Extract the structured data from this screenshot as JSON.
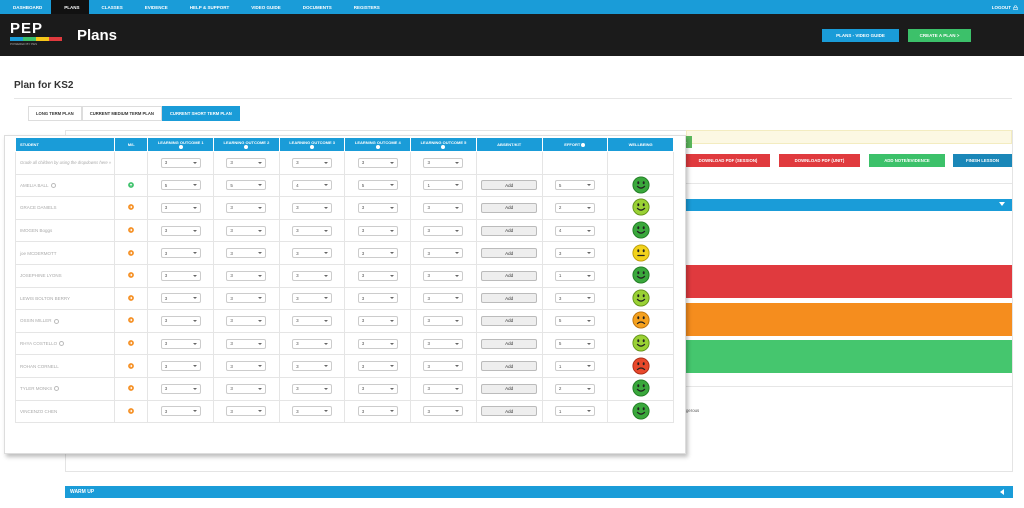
{
  "nav": {
    "items": [
      "DASHBOARD",
      "PLANS",
      "CLASSES",
      "EVIDENCE",
      "HELP & SUPPORT",
      "VIDEO GUIDE",
      "DOCUMENTS",
      "REGISTERS"
    ],
    "logout": "LOGOUT"
  },
  "header": {
    "logo_text": "PEP",
    "logo_tag": "POWERED BY PES",
    "title": "Plans",
    "video_guide": "PLANS - VIDEO GUIDE",
    "create_plan": "CREATE A PLAN >"
  },
  "plan_title": "Plan for KS2",
  "tabs": [
    {
      "label": "LONG TERM PLAN",
      "active": false
    },
    {
      "label": "CURRENT MEDIUM TERM PLAN",
      "active": false
    },
    {
      "label": "CURRENT SHORT TERM PLAN",
      "active": true
    }
  ],
  "actions": {
    "plus": "+",
    "pdf_session": "DOWNLOAD PDF (SESSION)",
    "pdf_unit": "DOWNLOAD PDF (UNIT)",
    "add_note": "ADD NOTE/EVIDENCE",
    "finish": "FINISH LESSON"
  },
  "hazard_text": "gerous",
  "warmup_label": "WARM UP",
  "table": {
    "headers": [
      "STUDENT",
      "M/L",
      "LEARNING OUTCOME 1",
      "LEARNING OUTCOME 2",
      "LEARNING OUTCOME 3",
      "LEARNING OUTCOME 4",
      "LEARNING OUTCOME 5",
      "ABSENT/KIT",
      "EFFORT",
      "WELLBEING"
    ],
    "bulk_note": "Grade all children by using the dropdowns here »",
    "bulk_values": [
      "3",
      "3",
      "3",
      "3",
      "3"
    ],
    "add_label": "Add",
    "rows": [
      {
        "name": "AMELIA BALL",
        "info": true,
        "ml": "up",
        "lo": [
          "5",
          "5",
          "4",
          "5",
          "1"
        ],
        "effort": "5",
        "wellbeing": "happy-dark"
      },
      {
        "name": "GRACE DANIELS",
        "info": false,
        "ml": "right",
        "lo": [
          "3",
          "3",
          "3",
          "3",
          "3"
        ],
        "effort": "2",
        "wellbeing": "happy-light"
      },
      {
        "name": "IMOGEN Boggs",
        "info": false,
        "ml": "right",
        "lo": [
          "3",
          "3",
          "3",
          "3",
          "3"
        ],
        "effort": "4",
        "wellbeing": "happy-dark"
      },
      {
        "name": "joe MCDERMOTT",
        "info": false,
        "ml": "right",
        "lo": [
          "3",
          "3",
          "3",
          "3",
          "3"
        ],
        "effort": "3",
        "wellbeing": "neutral"
      },
      {
        "name": "JOSEPHINE LYONS",
        "info": false,
        "ml": "right",
        "lo": [
          "3",
          "3",
          "3",
          "3",
          "3"
        ],
        "effort": "1",
        "wellbeing": "happy-dark"
      },
      {
        "name": "LEWIS BOLTON BERRY",
        "info": false,
        "ml": "right",
        "lo": [
          "3",
          "3",
          "3",
          "3",
          "3"
        ],
        "effort": "3",
        "wellbeing": "happy-light"
      },
      {
        "name": "OSSIN MILLER",
        "info": true,
        "ml": "right",
        "lo": [
          "3",
          "3",
          "3",
          "3",
          "3"
        ],
        "effort": "5",
        "wellbeing": "sad-orange"
      },
      {
        "name": "RHYA COSTELLO",
        "info": true,
        "ml": "right",
        "lo": [
          "3",
          "3",
          "3",
          "3",
          "3"
        ],
        "effort": "5",
        "wellbeing": "happy-light"
      },
      {
        "name": "ROHAN CORNELL",
        "info": false,
        "ml": "right",
        "lo": [
          "3",
          "3",
          "3",
          "3",
          "3"
        ],
        "effort": "1",
        "wellbeing": "sad-red"
      },
      {
        "name": "TYLER MONKS",
        "info": true,
        "ml": "right",
        "lo": [
          "3",
          "3",
          "3",
          "3",
          "3"
        ],
        "effort": "2",
        "wellbeing": "happy-dark"
      },
      {
        "name": "VINCENZO CHEN",
        "info": false,
        "ml": "right",
        "lo": [
          "3",
          "3",
          "3",
          "3",
          "3"
        ],
        "effort": "1",
        "wellbeing": "happy-dark"
      }
    ]
  },
  "colors": {
    "primary": "#1a9cd8",
    "green": "#3cc16a",
    "red": "#e03a3e",
    "orange": "#f58d1e",
    "dark": "#1b1b1b"
  }
}
